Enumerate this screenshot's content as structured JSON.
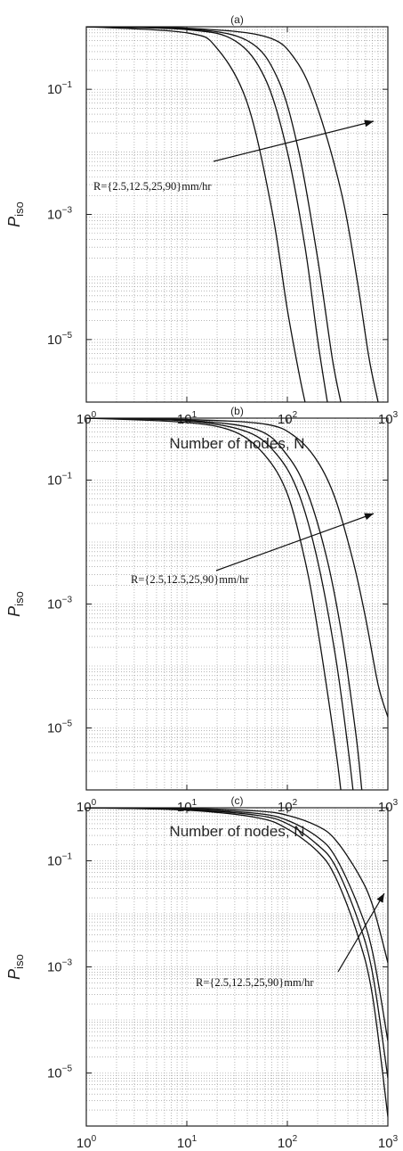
{
  "chart_data": [
    {
      "type": "line",
      "title": "(a)",
      "xlabel": "Number of nodes, N",
      "ylabel": "P",
      "ylabel_sub": "iso",
      "xscale": "log",
      "yscale": "log",
      "xlim": [
        1,
        1000
      ],
      "ylim": [
        1e-06,
        1
      ],
      "grid": true,
      "x_ticks": [
        {
          "value": 1,
          "base": "10",
          "exp": "0"
        },
        {
          "value": 10,
          "base": "10",
          "exp": "1"
        },
        {
          "value": 100,
          "base": "10",
          "exp": "2"
        },
        {
          "value": 1000,
          "base": "10",
          "exp": "3"
        }
      ],
      "y_ticks": [
        {
          "value": 0.1,
          "base": "10",
          "exp": "−1"
        },
        {
          "value": 0.001,
          "base": "10",
          "exp": "−3"
        },
        {
          "value": 1e-05,
          "base": "10",
          "exp": "−5"
        }
      ],
      "annotation": "R={2.5,12.5,25,90}mm/hr",
      "series": [
        {
          "x": [
            1,
            10,
            20,
            40,
            70,
            100,
            130,
            150
          ],
          "y": [
            1,
            0.8,
            0.45,
            0.06,
            0.0012,
            3e-05,
            3e-06,
            1e-06
          ]
        },
        {
          "x": [
            1,
            10,
            30,
            60,
            100,
            150,
            200,
            250
          ],
          "y": [
            1,
            0.9,
            0.6,
            0.15,
            0.01,
            0.0003,
            1e-05,
            1e-06
          ]
        },
        {
          "x": [
            1,
            10,
            40,
            80,
            130,
            200,
            280,
            340
          ],
          "y": [
            1,
            0.93,
            0.6,
            0.15,
            0.01,
            0.0002,
            5e-06,
            1e-06
          ]
        },
        {
          "x": [
            1,
            10,
            60,
            120,
            200,
            350,
            500,
            650,
            800
          ],
          "y": [
            1,
            0.95,
            0.7,
            0.3,
            0.05,
            0.002,
            8e-05,
            5e-06,
            1e-06
          ]
        }
      ]
    },
    {
      "type": "line",
      "title": "(b)",
      "xlabel": "Number of nodes, N",
      "ylabel": "P",
      "ylabel_sub": "iso",
      "xscale": "log",
      "yscale": "log",
      "xlim": [
        1,
        1000
      ],
      "ylim": [
        1e-06,
        1
      ],
      "grid": true,
      "x_ticks": [
        {
          "value": 1,
          "base": "10",
          "exp": "0"
        },
        {
          "value": 10,
          "base": "10",
          "exp": "1"
        },
        {
          "value": 100,
          "base": "10",
          "exp": "2"
        },
        {
          "value": 1000,
          "base": "10",
          "exp": "3"
        }
      ],
      "y_ticks": [
        {
          "value": 0.1,
          "base": "10",
          "exp": "−1"
        },
        {
          "value": 0.001,
          "base": "10",
          "exp": "−3"
        },
        {
          "value": 1e-05,
          "base": "10",
          "exp": "−5"
        }
      ],
      "annotation": "R={2.5,12.5,25,90}mm/hr",
      "series": [
        {
          "x": [
            1,
            10,
            30,
            60,
            100,
            150,
            200,
            300,
            340
          ],
          "y": [
            1,
            0.85,
            0.6,
            0.25,
            0.06,
            0.005,
            0.0004,
            5e-06,
            1e-06
          ]
        },
        {
          "x": [
            1,
            10,
            40,
            80,
            130,
            200,
            300,
            400,
            450
          ],
          "y": [
            1,
            0.9,
            0.6,
            0.25,
            0.06,
            0.005,
            0.00015,
            5e-06,
            1e-06
          ]
        },
        {
          "x": [
            1,
            10,
            50,
            100,
            160,
            250,
            350,
            480,
            550
          ],
          "y": [
            1,
            0.92,
            0.65,
            0.25,
            0.06,
            0.005,
            0.0003,
            8e-06,
            1e-06
          ]
        },
        {
          "x": [
            1,
            10,
            60,
            120,
            200,
            300,
            450,
            600,
            800,
            1000
          ],
          "y": [
            1,
            0.95,
            0.8,
            0.5,
            0.2,
            0.05,
            0.005,
            0.0006,
            5e-05,
            1.5e-05
          ]
        }
      ]
    },
    {
      "type": "line",
      "title": "(c)",
      "xlabel": "Number of nodes, N",
      "ylabel": "P",
      "ylabel_sub": "iso",
      "xscale": "log",
      "yscale": "log",
      "xlim": [
        1,
        1000
      ],
      "ylim": [
        1e-06,
        1
      ],
      "grid": true,
      "x_ticks": [
        {
          "value": 1,
          "base": "10",
          "exp": "0"
        },
        {
          "value": 10,
          "base": "10",
          "exp": "1"
        },
        {
          "value": 100,
          "base": "10",
          "exp": "2"
        },
        {
          "value": 1000,
          "base": "10",
          "exp": "3"
        }
      ],
      "y_ticks": [
        {
          "value": 0.1,
          "base": "10",
          "exp": "−1"
        },
        {
          "value": 0.001,
          "base": "10",
          "exp": "−3"
        },
        {
          "value": 1e-05,
          "base": "10",
          "exp": "−5"
        }
      ],
      "annotation": "R={2.5,12.5,25,90}mm/hr",
      "series": [
        {
          "x": [
            1,
            10,
            50,
            100,
            200,
            300,
            500,
            700,
            1000
          ],
          "y": [
            1,
            0.9,
            0.65,
            0.4,
            0.15,
            0.05,
            0.004,
            0.0003,
            1.5e-06
          ]
        },
        {
          "x": [
            1,
            10,
            50,
            100,
            200,
            300,
            500,
            700,
            1000
          ],
          "y": [
            1,
            0.92,
            0.72,
            0.5,
            0.2,
            0.08,
            0.008,
            0.0008,
            8e-06
          ]
        },
        {
          "x": [
            1,
            10,
            50,
            100,
            200,
            300,
            500,
            700,
            1000
          ],
          "y": [
            1,
            0.94,
            0.78,
            0.58,
            0.28,
            0.12,
            0.015,
            0.002,
            4e-05
          ]
        },
        {
          "x": [
            1,
            10,
            50,
            100,
            200,
            300,
            500,
            700,
            1000
          ],
          "y": [
            1,
            0.97,
            0.87,
            0.72,
            0.45,
            0.25,
            0.06,
            0.015,
            0.0012
          ]
        }
      ]
    }
  ]
}
